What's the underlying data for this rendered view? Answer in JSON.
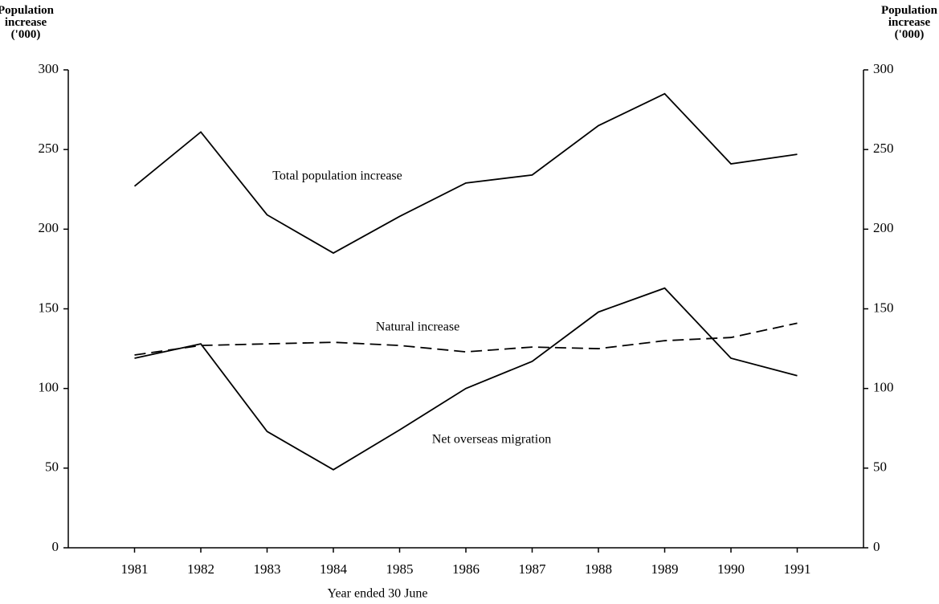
{
  "chart_data": {
    "type": "line",
    "y_label": "Population increase ('000)",
    "y2_label": "Population increase ('000)",
    "x_label": "Year ended 30 June",
    "categories": [
      "1981",
      "1982",
      "1983",
      "1984",
      "1985",
      "1986",
      "1987",
      "1988",
      "1989",
      "1990",
      "1991"
    ],
    "series": [
      {
        "name": "Total population increase",
        "color": "#000000",
        "dash": "solid",
        "values": [
          227,
          261,
          209,
          185,
          208,
          229,
          234,
          265,
          285,
          241,
          247
        ]
      },
      {
        "name": "Natural increase",
        "color": "#000000",
        "dash": "dashed",
        "values": [
          121,
          127,
          128,
          129,
          127,
          123,
          126,
          125,
          130,
          132,
          141
        ]
      },
      {
        "name": "Net overseas migration",
        "color": "#000000",
        "dash": "solid",
        "values": [
          119,
          128,
          73,
          49,
          74,
          100,
          117,
          148,
          163,
          119,
          108
        ]
      }
    ],
    "ylim": [
      0,
      300
    ],
    "yticks": [
      0,
      50,
      100,
      150,
      200,
      250,
      300
    ],
    "y2lim": [
      0,
      300
    ],
    "y2ticks": [
      0,
      50,
      100,
      150,
      200,
      250,
      300
    ],
    "grid": false
  }
}
